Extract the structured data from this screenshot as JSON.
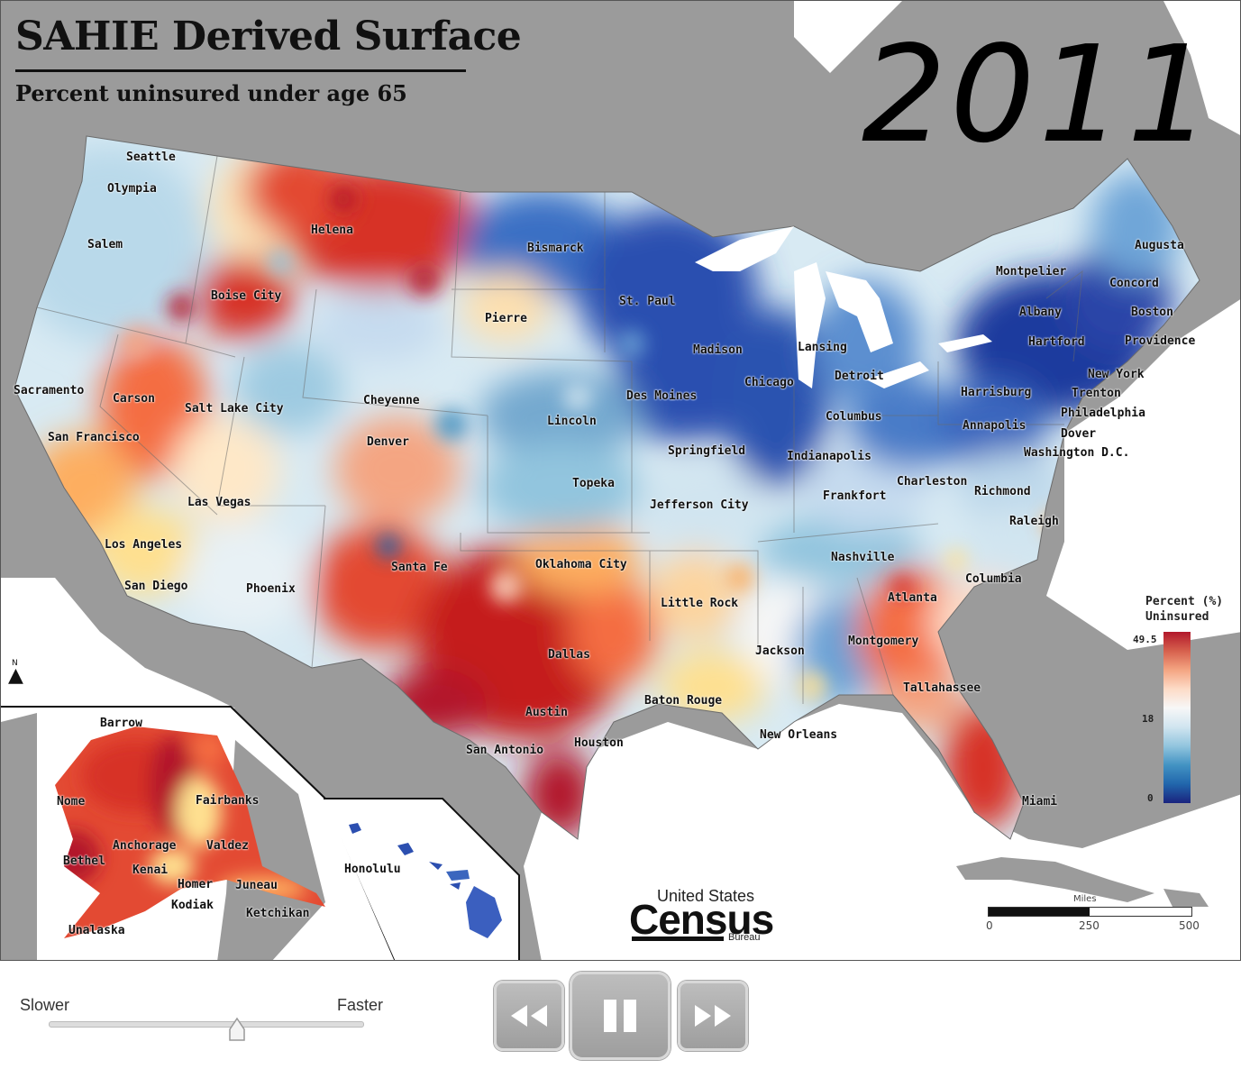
{
  "map": {
    "title": "SAHIE Derived Surface",
    "subtitle": "Percent uninsured under age 65",
    "year": "2011",
    "legend": {
      "title_line1": "Percent (%)",
      "title_line2": "Uninsured",
      "max": "49.5",
      "mid": "18",
      "min": "0",
      "colors": [
        "#b2182b",
        "#f4a582",
        "#f7f7f7",
        "#4393c3",
        "#1a237e"
      ]
    },
    "scale": {
      "unit": "Miles",
      "ticks": [
        "0",
        "250",
        "500"
      ]
    },
    "logo": {
      "top": "United States",
      "main": "Census",
      "bottom": "Bureau"
    },
    "cities": [
      "Seattle",
      "Olympia",
      "Salem",
      "Boise City",
      "Helena",
      "Sacramento",
      "Carson",
      "San Francisco",
      "Salt Lake City",
      "Cheyenne",
      "Denver",
      "Las Vegas",
      "Los Angeles",
      "San Diego",
      "Phoenix",
      "Santa Fe",
      "Bismarck",
      "Pierre",
      "St. Paul",
      "Lincoln",
      "Topeka",
      "Oklahoma City",
      "Dallas",
      "Austin",
      "San Antonio",
      "Houston",
      "Des Moines",
      "Madison",
      "Chicago",
      "Springfield",
      "Jefferson City",
      "Little Rock",
      "Jackson",
      "Baton Rouge",
      "New Orleans",
      "Lansing",
      "Detroit",
      "Indianapolis",
      "Columbus",
      "Frankfort",
      "Nashville",
      "Montgomery",
      "Atlanta",
      "Tallahassee",
      "Miami",
      "Columbia",
      "Raleigh",
      "Charleston",
      "Richmond",
      "Washington D.C.",
      "Annapolis",
      "Dover",
      "Philadelphia",
      "Trenton",
      "Harrisburg",
      "New York",
      "Hartford",
      "Providence",
      "Boston",
      "Albany",
      "Concord",
      "Montpelier",
      "Augusta",
      "Barrow",
      "Nome",
      "Fairbanks",
      "Bethel",
      "Anchorage",
      "Valdez",
      "Kenai",
      "Homer",
      "Juneau",
      "Kodiak",
      "Ketchikan",
      "Unalaska",
      "Honolulu"
    ]
  },
  "controls": {
    "slower": "Slower",
    "faster": "Faster",
    "speed_level": 0.6,
    "buttons": {
      "rewind": "rewind-icon",
      "pause": "pause-icon",
      "forward": "fast-forward-icon"
    }
  }
}
